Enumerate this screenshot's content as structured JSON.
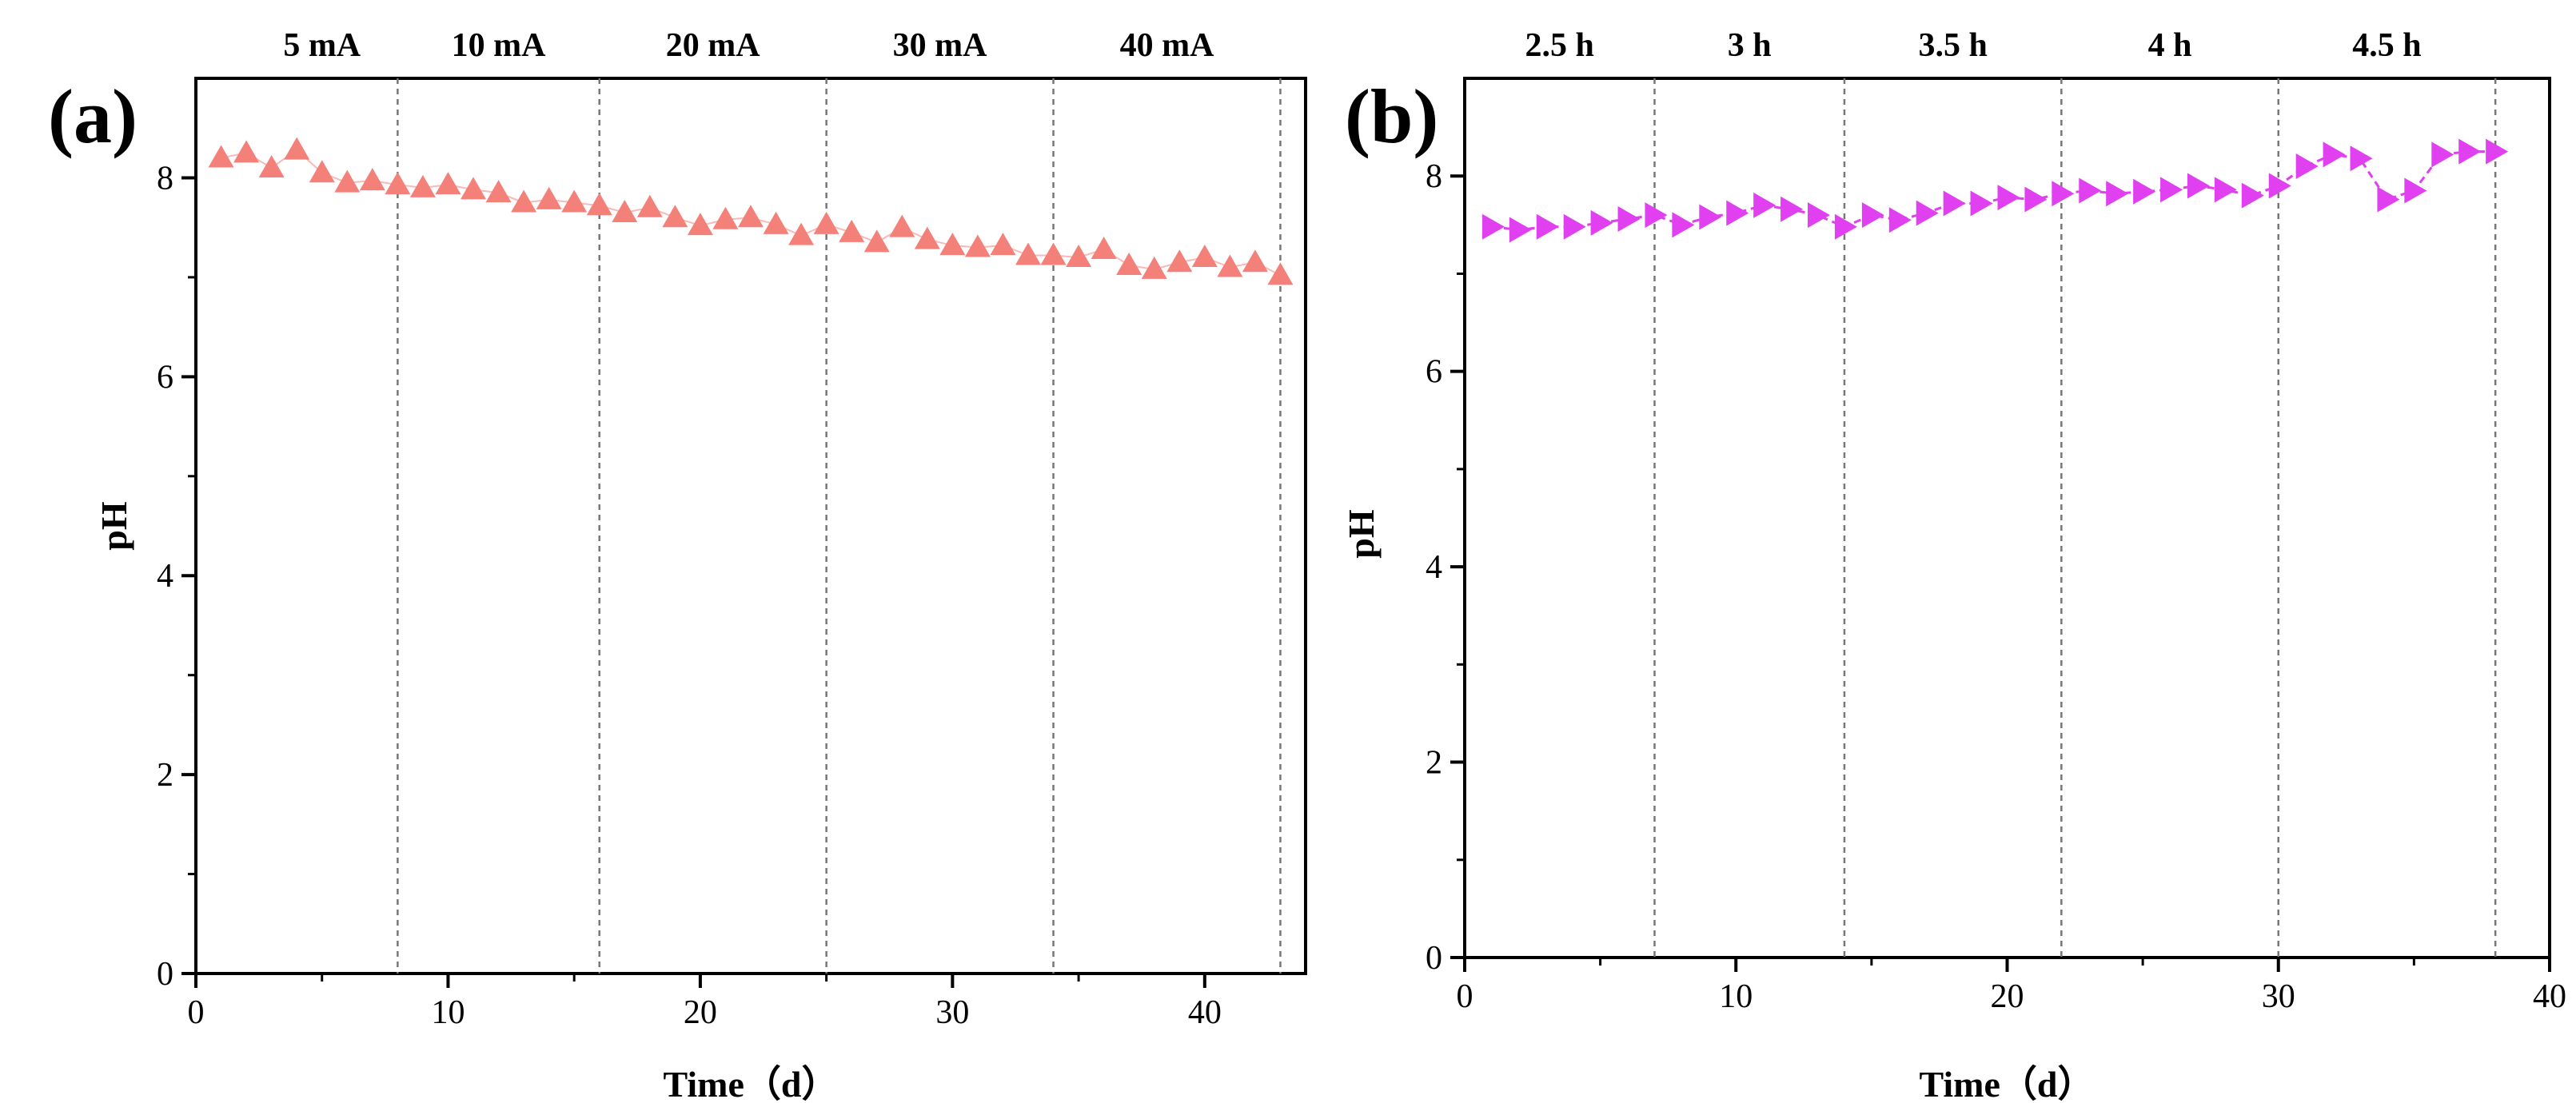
{
  "chart_data": [
    {
      "type": "scatter",
      "panel_label": "(a)",
      "xlabel": "Time（d）",
      "ylabel": "pH",
      "xlim": [
        0,
        44
      ],
      "ylim": [
        0,
        9
      ],
      "xticks": [
        0,
        10,
        20,
        30,
        40
      ],
      "yticks": [
        0,
        2,
        4,
        6,
        8
      ],
      "tick_labels_x": [
        "0",
        "10",
        "20",
        "30",
        "40"
      ],
      "tick_labels_y": [
        "0",
        "2",
        "4",
        "6",
        "8"
      ],
      "phase_boundaries": [
        8,
        16,
        25,
        34,
        43
      ],
      "phase_labels": [
        {
          "text": "5 mA",
          "x": 5
        },
        {
          "text": "10 mA",
          "x": 12
        },
        {
          "text": "20 mA",
          "x": 20.5
        },
        {
          "text": "30 mA",
          "x": 29.5
        },
        {
          "text": "40 mA",
          "x": 38.5
        }
      ],
      "series": [
        {
          "name": "pH",
          "color": "#f4807a",
          "marker": "triangle-up",
          "x": [
            1,
            2,
            3,
            4,
            5,
            6,
            7,
            8,
            9,
            10,
            11,
            12,
            13,
            14,
            15,
            16,
            17,
            18,
            19,
            20,
            21,
            22,
            23,
            24,
            25,
            26,
            27,
            28,
            29,
            30,
            31,
            32,
            33,
            34,
            35,
            36,
            37,
            38,
            39,
            40,
            41,
            42,
            43
          ],
          "y": [
            8.2,
            8.25,
            8.1,
            8.28,
            8.05,
            7.95,
            7.97,
            7.93,
            7.9,
            7.93,
            7.88,
            7.85,
            7.75,
            7.78,
            7.75,
            7.72,
            7.65,
            7.7,
            7.6,
            7.52,
            7.58,
            7.6,
            7.53,
            7.42,
            7.53,
            7.45,
            7.35,
            7.5,
            7.38,
            7.32,
            7.3,
            7.32,
            7.22,
            7.22,
            7.2,
            7.28,
            7.12,
            7.08,
            7.15,
            7.2,
            7.1,
            7.15,
            7.02
          ]
        }
      ]
    },
    {
      "type": "line",
      "panel_label": "(b)",
      "xlabel": "Time（d）",
      "ylabel": "pH",
      "xlim": [
        0,
        40
      ],
      "ylim": [
        0,
        9
      ],
      "xticks": [
        0,
        10,
        20,
        30,
        40
      ],
      "yticks": [
        0,
        2,
        4,
        6,
        8
      ],
      "tick_labels_x": [
        "0",
        "10",
        "20",
        "30",
        "40"
      ],
      "tick_labels_y": [
        "0",
        "2",
        "4",
        "6",
        "8"
      ],
      "phase_boundaries": [
        7,
        14,
        22,
        30,
        38
      ],
      "phase_labels": [
        {
          "text": "2.5 h",
          "x": 3.5
        },
        {
          "text": "3 h",
          "x": 10.5
        },
        {
          "text": "3.5 h",
          "x": 18
        },
        {
          "text": "4 h",
          "x": 26
        },
        {
          "text": "4.5 h",
          "x": 34
        }
      ],
      "series": [
        {
          "name": "pH",
          "color": "#e040f0",
          "marker": "triangle-right",
          "x": [
            1,
            2,
            3,
            4,
            5,
            6,
            7,
            8,
            9,
            10,
            11,
            12,
            13,
            14,
            15,
            16,
            17,
            18,
            19,
            20,
            21,
            22,
            23,
            24,
            25,
            26,
            27,
            28,
            29,
            30,
            31,
            32,
            33,
            34,
            35,
            36,
            37,
            38
          ],
          "y": [
            7.48,
            7.45,
            7.48,
            7.48,
            7.52,
            7.56,
            7.6,
            7.5,
            7.58,
            7.62,
            7.7,
            7.66,
            7.6,
            7.48,
            7.6,
            7.55,
            7.62,
            7.72,
            7.72,
            7.78,
            7.76,
            7.82,
            7.85,
            7.82,
            7.84,
            7.86,
            7.9,
            7.86,
            7.8,
            7.9,
            8.1,
            8.22,
            8.18,
            7.76,
            7.85,
            8.22,
            8.25,
            8.25
          ]
        }
      ]
    }
  ]
}
